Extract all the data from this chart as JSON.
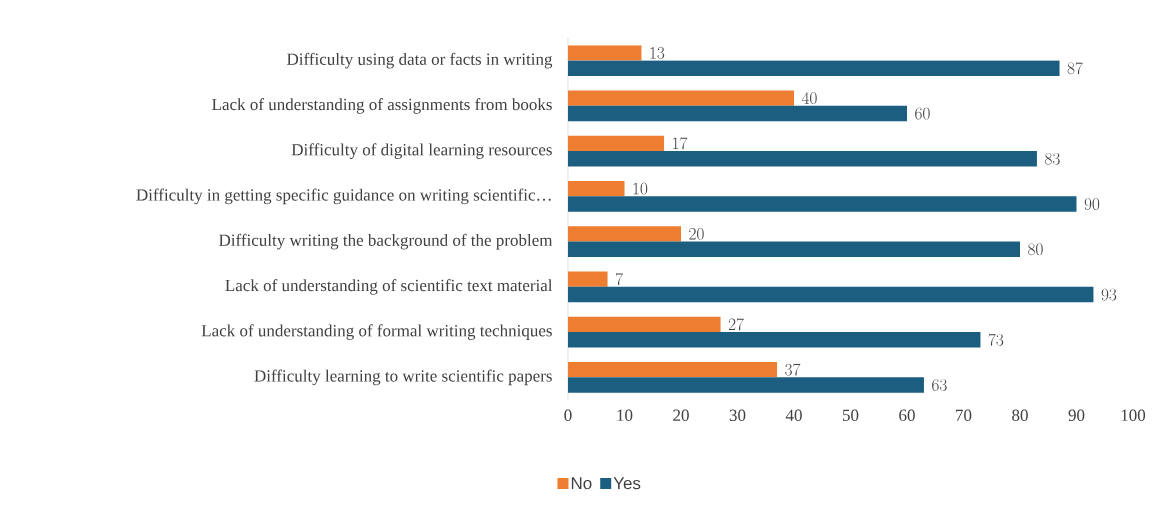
{
  "chart_data": {
    "type": "bar",
    "orientation": "horizontal",
    "categories": [
      "Difficulty using data or facts in writing",
      "Lack of understanding of assignments from books",
      "Difficulty of digital learning resources",
      "Difficulty in getting specific guidance on writing scientific…",
      "Difficulty writing the background of the problem",
      "Lack of understanding of scientific text material",
      "Lack of understanding of formal writing techniques",
      "Difficulty learning to write scientific papers"
    ],
    "series": [
      {
        "name": "No",
        "color": "#ed7d31",
        "values": [
          13,
          40,
          17,
          10,
          20,
          7,
          27,
          37
        ]
      },
      {
        "name": "Yes",
        "color": "#1b5e80",
        "values": [
          87,
          60,
          83,
          90,
          80,
          93,
          73,
          63
        ]
      }
    ],
    "xlim": [
      0,
      100
    ],
    "xticks": [
      0,
      10,
      20,
      30,
      40,
      50,
      60,
      70,
      80,
      90,
      100
    ],
    "data_labels": true,
    "legend": "bottom",
    "grid": false
  }
}
